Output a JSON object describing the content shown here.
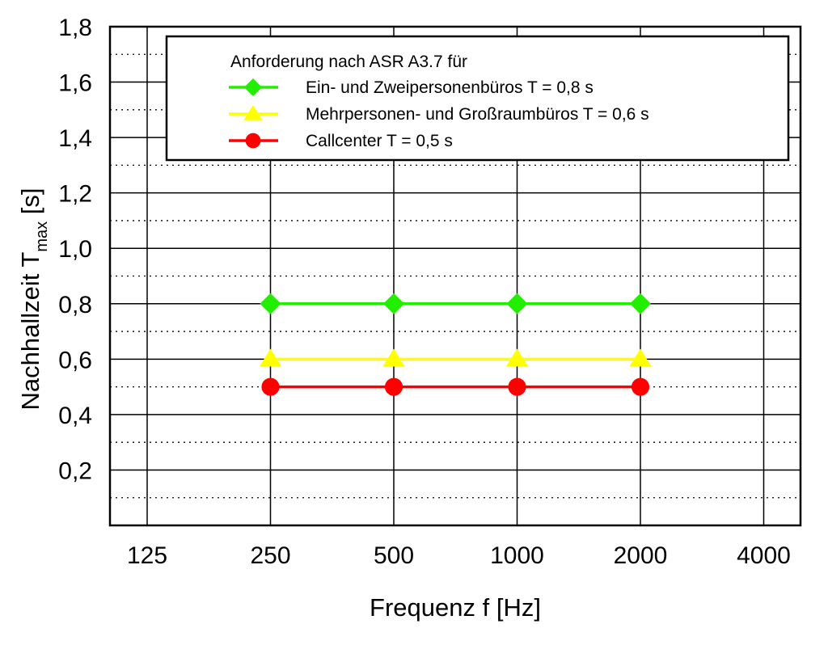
{
  "chart_data": {
    "type": "line",
    "x_scale": "log2",
    "categories": [
      "125",
      "250",
      "500",
      "1000",
      "2000",
      "4000"
    ],
    "x": [
      125,
      250,
      500,
      1000,
      2000,
      4000
    ],
    "ylim": [
      0,
      1.8
    ],
    "y_ticks": [
      "0,2",
      "0,4",
      "0,6",
      "0,8",
      "1,0",
      "1,2",
      "1,4",
      "1,6",
      "1,8"
    ],
    "y_tick_values": [
      0.2,
      0.4,
      0.6,
      0.8,
      1.0,
      1.2,
      1.4,
      1.6,
      1.8
    ],
    "y_minor_grid": [
      0.1,
      0.3,
      0.5,
      0.7,
      0.9,
      1.1,
      1.3,
      1.5,
      1.7
    ],
    "xlabel": "Frequenz f [Hz]",
    "ylabel": {
      "main": "Nachhallzeit T",
      "subscript": "max",
      "unit": " [s]"
    },
    "grid": true,
    "legend": {
      "placement": "top-right",
      "title": "Anforderung nach ASR A3.7 für"
    },
    "series": [
      {
        "name": "Ein- und Zweipersonenbüros T = 0,8 s",
        "marker": "diamond",
        "color": "#22ee00",
        "x": [
          250,
          500,
          1000,
          2000
        ],
        "values": [
          0.8,
          0.8,
          0.8,
          0.8
        ]
      },
      {
        "name": "Mehrpersonen- und Großraumbüros T = 0,6 s",
        "marker": "triangle",
        "color": "#ffff00",
        "x": [
          250,
          500,
          1000,
          2000
        ],
        "values": [
          0.6,
          0.6,
          0.6,
          0.6
        ]
      },
      {
        "name": "Callcenter T = 0,5 s",
        "marker": "circle",
        "color": "#ff0000",
        "x": [
          250,
          500,
          1000,
          2000
        ],
        "values": [
          0.5,
          0.5,
          0.5,
          0.5
        ]
      }
    ]
  }
}
